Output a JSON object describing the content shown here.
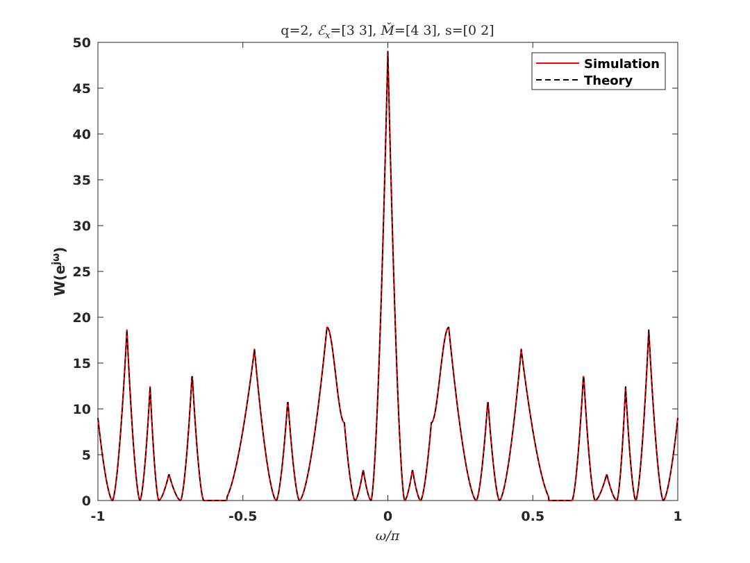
{
  "chart_data": {
    "type": "line",
    "title": "q=2, ℰₓ=[3 3], M̌=[4 3], s=[0 2]",
    "title_parts": {
      "lead": "q=2, ",
      "e_symbol": "ℰ",
      "e_subscript": "x",
      "after_e": "=[3 3], ",
      "m_symbol": "M̌",
      "tail": "=[4 3], s=[0 2]"
    },
    "xlabel": "ω/π",
    "ylabel": "W(e^{jω})",
    "ylabel_parts": {
      "base": "W(e",
      "sup": "jω",
      "close": ")"
    },
    "xlim": [
      -1,
      1
    ],
    "ylim": [
      0,
      50
    ],
    "xticks": [
      -1,
      -0.5,
      0,
      0.5,
      1
    ],
    "xtick_labels": [
      "-1",
      "-0.5",
      "0",
      "0.5",
      "1"
    ],
    "yticks": [
      0,
      5,
      10,
      15,
      20,
      25,
      30,
      35,
      40,
      45,
      50
    ],
    "ytick_labels": [
      "0",
      "5",
      "10",
      "15",
      "20",
      "25",
      "30",
      "35",
      "40",
      "45",
      "50"
    ],
    "grid": false,
    "legend_position": "top-right",
    "series": [
      {
        "name": "Simulation",
        "color": "#ff0000",
        "style": "solid",
        "peaks": [
          [
            0,
            49
          ],
          [
            0.085,
            3.4
          ],
          [
            0.21,
            18.9
          ],
          [
            0.345,
            11.0
          ],
          [
            0.46,
            16.5
          ],
          [
            0.675,
            13.9
          ],
          [
            0.755,
            2.9
          ],
          [
            0.82,
            12.4
          ],
          [
            0.9,
            18.6
          ],
          [
            1,
            9.0
          ]
        ],
        "zeros": [
          0.058,
          0.113,
          0.305,
          0.385,
          0.565,
          0.635,
          0.715,
          0.79,
          0.855,
          0.95
        ],
        "shoulders": [
          [
            0.15,
            8.5
          ]
        ],
        "flat_segments": [
          [
            0.555,
            0.63
          ]
        ]
      },
      {
        "name": "Theory",
        "color": "#000000",
        "style": "dashed"
      }
    ]
  }
}
